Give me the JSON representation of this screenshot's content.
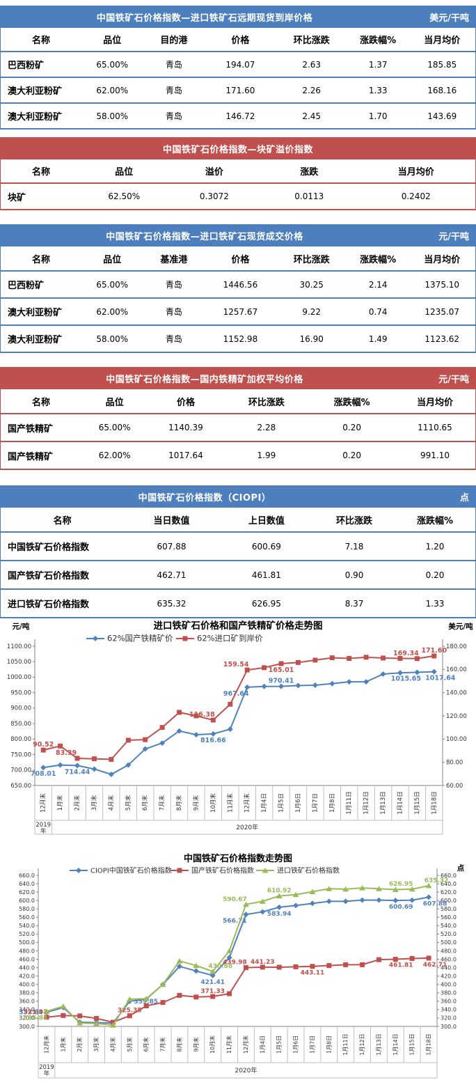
{
  "colors": {
    "table_blue": "#4d7ebd",
    "table_red": "#c0504d",
    "series_blue": "#4f81bd",
    "series_red": "#c0504d",
    "series_green": "#9bbb59"
  },
  "tables": [
    {
      "title": "中国铁矿石价格指数—进口铁矿石远期现货到岸价格",
      "unit": "美元/干吨",
      "theme": "blue",
      "columns": [
        "名称",
        "品位",
        "目的港",
        "价格",
        "环比涨跌",
        "涨跌幅%",
        "当月均价"
      ],
      "rows": [
        [
          "巴西粉矿",
          "65.00%",
          "青岛",
          "194.07",
          "2.63",
          "1.37",
          "185.85"
        ],
        [
          "澳大利亚粉矿",
          "62.00%",
          "青岛",
          "171.60",
          "2.26",
          "1.33",
          "168.16"
        ],
        [
          "澳大利亚粉矿",
          "58.00%",
          "青岛",
          "146.72",
          "2.45",
          "1.70",
          "143.69"
        ]
      ]
    },
    {
      "title": "中国铁矿石价格指数—块矿溢价指数",
      "unit": "",
      "theme": "red",
      "columns": [
        "名称",
        "品位",
        "溢价",
        "涨跌",
        "当月均价"
      ],
      "rows": [
        [
          "块矿",
          "62.50%",
          "0.3072",
          "0.0113",
          "0.2402"
        ]
      ]
    },
    {
      "title": "中国铁矿石价格指数—进口铁矿石现货成交价格",
      "unit": "元/干吨",
      "theme": "blue",
      "columns": [
        "名称",
        "品位",
        "基准港",
        "价格",
        "环比涨跌",
        "涨跌幅%",
        "当月均价"
      ],
      "rows": [
        [
          "巴西粉矿",
          "65.00%",
          "青岛",
          "1446.56",
          "30.25",
          "2.14",
          "1375.10"
        ],
        [
          "澳大利亚粉矿",
          "62.00%",
          "青岛",
          "1257.67",
          "9.22",
          "0.74",
          "1235.07"
        ],
        [
          "澳大利亚粉矿",
          "58.00%",
          "青岛",
          "1152.98",
          "16.90",
          "1.49",
          "1123.62"
        ]
      ]
    },
    {
      "title": "中国铁矿石价格指数—国内铁精矿加权平均价格",
      "unit": "元/干吨",
      "theme": "red",
      "columns": [
        "名称",
        "品位",
        "价格",
        "环比涨跌",
        "涨跌幅%",
        "当月均价"
      ],
      "rows": [
        [
          "国产铁精矿",
          "65.00%",
          "1140.39",
          "2.28",
          "0.20",
          "1110.65"
        ],
        [
          "国产铁精矿",
          "62.00%",
          "1017.64",
          "1.99",
          "0.20",
          "991.10"
        ]
      ]
    },
    {
      "title": "中国铁矿石价格指数（CIOPI）",
      "unit": "点",
      "theme": "blue",
      "columns": [
        "名称",
        "当日数值",
        "上日数值",
        "环比涨跌",
        "涨跌幅%"
      ],
      "rows": [
        [
          "中国铁矿石价格指数",
          "607.88",
          "600.69",
          "7.18",
          "1.20"
        ],
        [
          "国产铁矿石价格指数",
          "462.71",
          "461.81",
          "0.90",
          "0.20"
        ],
        [
          "进口铁矿石价格指数",
          "635.32",
          "626.95",
          "8.37",
          "1.33"
        ]
      ]
    }
  ],
  "chart_data": [
    {
      "type": "line",
      "title": "进口铁矿石价格和国产铁精矿价格走势图",
      "units": [
        {
          "side": "left",
          "text": "元/吨"
        },
        {
          "side": "right",
          "text": "美元/吨"
        }
      ],
      "year_left": "2019年",
      "year_right": "2020年",
      "categories": [
        "12月末",
        "1月末",
        "2月末",
        "3月末",
        "4月末",
        "5月末",
        "6月末",
        "7月末",
        "8月末",
        "9月末",
        "10月末",
        "11月末",
        "12月末",
        "1月4日",
        "1月5日",
        "1月6日",
        "1月7日",
        "1月8日",
        "1月11日",
        "1月12日",
        "1月13日",
        "1月14日",
        "1月15日",
        "1月18日"
      ],
      "axes": {
        "left": {
          "min": 650,
          "max": 1100,
          "step": 50,
          "dec": 2
        },
        "right": {
          "min": 60,
          "max": 180,
          "step": 20,
          "dec": 2
        }
      },
      "series": [
        {
          "name": "62%国产铁精矿价",
          "color": "#4f81bd",
          "marker": "diamond",
          "axis": "left",
          "values": [
            708.01,
            716,
            714.44,
            703,
            686,
            716,
            768,
            787,
            826,
            814,
            816.66,
            832,
            967.64,
            970,
            970.41,
            973,
            974,
            979,
            985,
            985,
            1010,
            1014,
            1015.65,
            1017.64
          ],
          "point_labels": [
            {
              "i": 0,
              "text": "708.01",
              "pos": "below"
            },
            {
              "i": 2,
              "text": "714.44",
              "pos": "below"
            },
            {
              "i": 10,
              "text": "816.66",
              "pos": "below"
            },
            {
              "i": 12,
              "text": "967.64",
              "pos": "below-left"
            },
            {
              "i": 14,
              "text": "970.41",
              "pos": "above"
            },
            {
              "i": 22,
              "text": "1015.65",
              "pos": "below-left"
            },
            {
              "i": 23,
              "text": "1017.64",
              "pos": "below-right"
            }
          ]
        },
        {
          "name": "62%进口矿到岸价",
          "color": "#c0504d",
          "marker": "square",
          "axis": "right",
          "values": [
            90.52,
            94,
            83.39,
            83,
            82.5,
            99,
            99.5,
            110,
            123,
            120,
            116.38,
            130,
            159.54,
            161.5,
            165.01,
            166,
            168,
            170,
            169.5,
            170.5,
            169.8,
            169.5,
            169.34,
            171.6
          ],
          "point_labels": [
            {
              "i": 0,
              "text": "90.52",
              "pos": "above"
            },
            {
              "i": 2,
              "text": "83.39",
              "pos": "above-left"
            },
            {
              "i": 10,
              "text": "116.38",
              "pos": "above-left"
            },
            {
              "i": 12,
              "text": "159.54",
              "pos": "above-left"
            },
            {
              "i": 14,
              "text": "165.01",
              "pos": "below"
            },
            {
              "i": 22,
              "text": "169.34",
              "pos": "above-left"
            },
            {
              "i": 23,
              "text": "171.60",
              "pos": "above"
            }
          ]
        }
      ]
    },
    {
      "type": "line",
      "title": "中国铁矿石价格指数走势图",
      "units": [
        {
          "side": "right",
          "text": "点"
        }
      ],
      "year_left": "2019年",
      "year_right": "2020年",
      "categories": [
        "12月末",
        "1月末",
        "2月末",
        "3月末",
        "4月末",
        "5月末",
        "6月末",
        "7月末",
        "8月末",
        "9月末",
        "10月末",
        "11月末",
        "12月末",
        "1月4日",
        "1月5日",
        "1月6日",
        "1月7日",
        "1月8日",
        "1月11日",
        "1月12日",
        "1月13日",
        "1月14日",
        "1月15日",
        "1月18日"
      ],
      "axes": {
        "left": {
          "min": 300,
          "max": 660,
          "step": 20,
          "dec": 1
        }
      },
      "mirror_right": true,
      "series": [
        {
          "name": "CIOPI中国铁矿石价格指数",
          "color": "#4f81bd",
          "marker": "diamond",
          "axis": "left",
          "values": [
            333.84,
            345,
            310,
            309,
            308,
            359.85,
            365,
            400,
            443,
            432,
            421.41,
            464,
            566.71,
            573,
            583.94,
            588,
            593,
            598,
            598,
            601,
            601,
            600,
            600.69,
            607.88
          ],
          "point_labels": [
            {
              "i": 0,
              "text": "333.84",
              "pos": "left"
            },
            {
              "i": 5,
              "text": "359.85",
              "pos": "right"
            },
            {
              "i": 10,
              "text": "421.41",
              "pos": "below"
            },
            {
              "i": 12,
              "text": "566.71",
              "pos": "below-left"
            },
            {
              "i": 14,
              "text": "583.94",
              "pos": "below"
            },
            {
              "i": 22,
              "text": "600.69",
              "pos": "below-left"
            },
            {
              "i": 23,
              "text": "607.88",
              "pos": "below-right"
            }
          ]
        },
        {
          "name": "国产铁矿石价格指数",
          "color": "#c0504d",
          "marker": "square",
          "axis": "left",
          "values": [
            321.93,
            326,
            325,
            319,
            310,
            325.35,
            349,
            357,
            374,
            370,
            371.33,
            378,
            439.98,
            441.23,
            441,
            442,
            443.11,
            445,
            447,
            447,
            459,
            460,
            461.81,
            462.71
          ],
          "point_labels": [
            {
              "i": 0,
              "text": "321.93",
              "pos": "above-left"
            },
            {
              "i": 5,
              "text": "325.35",
              "pos": "above"
            },
            {
              "i": 10,
              "text": "371.33",
              "pos": "above"
            },
            {
              "i": 12,
              "text": "439.98",
              "pos": "above-left"
            },
            {
              "i": 13,
              "text": "441.23",
              "pos": "above"
            },
            {
              "i": 16,
              "text": "443.11",
              "pos": "below"
            },
            {
              "i": 22,
              "text": "461.81",
              "pos": "below-left"
            },
            {
              "i": 23,
              "text": "462.71",
              "pos": "below-right"
            }
          ]
        },
        {
          "name": "进口铁矿石价格指数",
          "color": "#9bbb59",
          "marker": "triangle",
          "axis": "left",
          "values": [
            335.84,
            348,
            308,
            307,
            303,
            365,
            366,
            400,
            456,
            445,
            430.88,
            480,
            590.67,
            598,
            610.92,
            614,
            621,
            628,
            627,
            630,
            628,
            626,
            626.95,
            635.32
          ],
          "point_labels": [
            {
              "i": 0,
              "text": "335.84",
              "pos": "below-left"
            },
            {
              "i": 10,
              "text": "430.88",
              "pos": "above-right"
            },
            {
              "i": 12,
              "text": "590.67",
              "pos": "above-left"
            },
            {
              "i": 14,
              "text": "610.92",
              "pos": "above"
            },
            {
              "i": 22,
              "text": "626.95",
              "pos": "above-left"
            },
            {
              "i": 23,
              "text": "635.32",
              "pos": "above-right"
            }
          ]
        }
      ]
    }
  ]
}
